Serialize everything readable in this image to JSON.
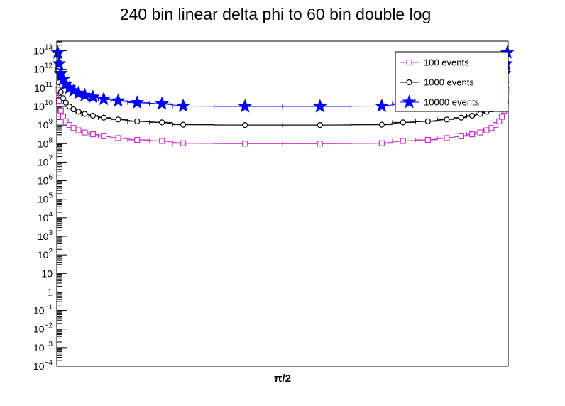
{
  "chart_data": {
    "type": "line",
    "title": "240 bin linear delta phi to 60 bin double log",
    "xlabel": "π/2",
    "ylabel": "",
    "y_scale": "log",
    "ylim": [
      0.0001,
      10000000000000
    ],
    "xlim": [
      0,
      1
    ],
    "grid": false,
    "legend_position": "top-right",
    "y_tick_labels": [
      {
        "base": "10",
        "exp": "−4",
        "value": 0.0001
      },
      {
        "base": "10",
        "exp": "−3",
        "value": 0.001
      },
      {
        "base": "10",
        "exp": "−2",
        "value": 0.01
      },
      {
        "base": "10",
        "exp": "−1",
        "value": 0.1
      },
      {
        "base": "1",
        "exp": "",
        "value": 1
      },
      {
        "base": "10",
        "exp": "",
        "value": 10
      },
      {
        "base": "10",
        "exp": "2",
        "value": 100
      },
      {
        "base": "10",
        "exp": "3",
        "value": 1000
      },
      {
        "base": "10",
        "exp": "4",
        "value": 10000
      },
      {
        "base": "10",
        "exp": "5",
        "value": 100000
      },
      {
        "base": "10",
        "exp": "6",
        "value": 1000000
      },
      {
        "base": "10",
        "exp": "7",
        "value": 10000000
      },
      {
        "base": "10",
        "exp": "8",
        "value": 100000000
      },
      {
        "base": "10",
        "exp": "9",
        "value": 1000000000
      },
      {
        "base": "10",
        "exp": "10",
        "value": 10000000000
      },
      {
        "base": "10",
        "exp": "11",
        "value": 100000000000
      },
      {
        "base": "10",
        "exp": "12",
        "value": 1000000000000
      },
      {
        "base": "10",
        "exp": "13",
        "value": 10000000000000
      }
    ],
    "x": [
      0.002,
      0.005,
      0.009,
      0.014,
      0.02,
      0.028,
      0.037,
      0.048,
      0.062,
      0.08,
      0.104,
      0.136,
      0.178,
      0.233,
      0.28,
      0.417,
      0.583,
      0.72,
      0.767,
      0.822,
      0.864,
      0.896,
      0.92,
      0.938,
      0.952,
      0.963,
      0.972,
      0.98,
      0.986,
      0.991,
      0.995,
      0.998
    ],
    "series": [
      {
        "name": "100 events",
        "color": "#cc33cc",
        "marker": "open-square",
        "values": [
          80000000000,
          20000000000,
          6000000000,
          2800000000,
          1600000000,
          1000000000,
          700000000,
          520000000,
          400000000,
          320000000,
          250000000,
          200000000,
          160000000,
          140000000,
          105000000,
          100000000,
          100000000,
          105000000,
          140000000,
          160000000,
          200000000,
          250000000,
          320000000,
          400000000,
          520000000,
          700000000,
          1000000000,
          1600000000,
          2800000000,
          6000000000,
          20000000000,
          80000000000
        ]
      },
      {
        "name": "1000 events",
        "color": "#000000",
        "marker": "open-circle",
        "values": [
          800000000000,
          200000000000,
          60000000000,
          28000000000,
          16000000000,
          10000000000,
          7000000000,
          5200000000,
          4000000000,
          3200000000,
          2500000000,
          2000000000,
          1600000000,
          1400000000,
          1050000000,
          1000000000,
          1000000000,
          1050000000,
          1400000000,
          1600000000,
          2000000000,
          2500000000,
          3200000000,
          4000000000,
          5200000000,
          7000000000,
          10000000000,
          16000000000,
          28000000000,
          60000000000,
          200000000000,
          800000000000
        ]
      },
      {
        "name": "10000 events",
        "color": "#0000ff",
        "marker": "filled-star",
        "values": [
          8000000000000,
          2000000000000,
          600000000000,
          280000000000,
          160000000000,
          100000000000,
          70000000000,
          52000000000,
          40000000000,
          32000000000,
          25000000000,
          20000000000,
          16000000000,
          14000000000,
          10500000000,
          10000000000,
          10000000000,
          10500000000,
          14000000000,
          16000000000,
          20000000000,
          25000000000,
          32000000000,
          40000000000,
          52000000000,
          70000000000,
          100000000000,
          160000000000,
          280000000000,
          600000000000,
          2000000000000,
          8000000000000
        ]
      }
    ]
  }
}
